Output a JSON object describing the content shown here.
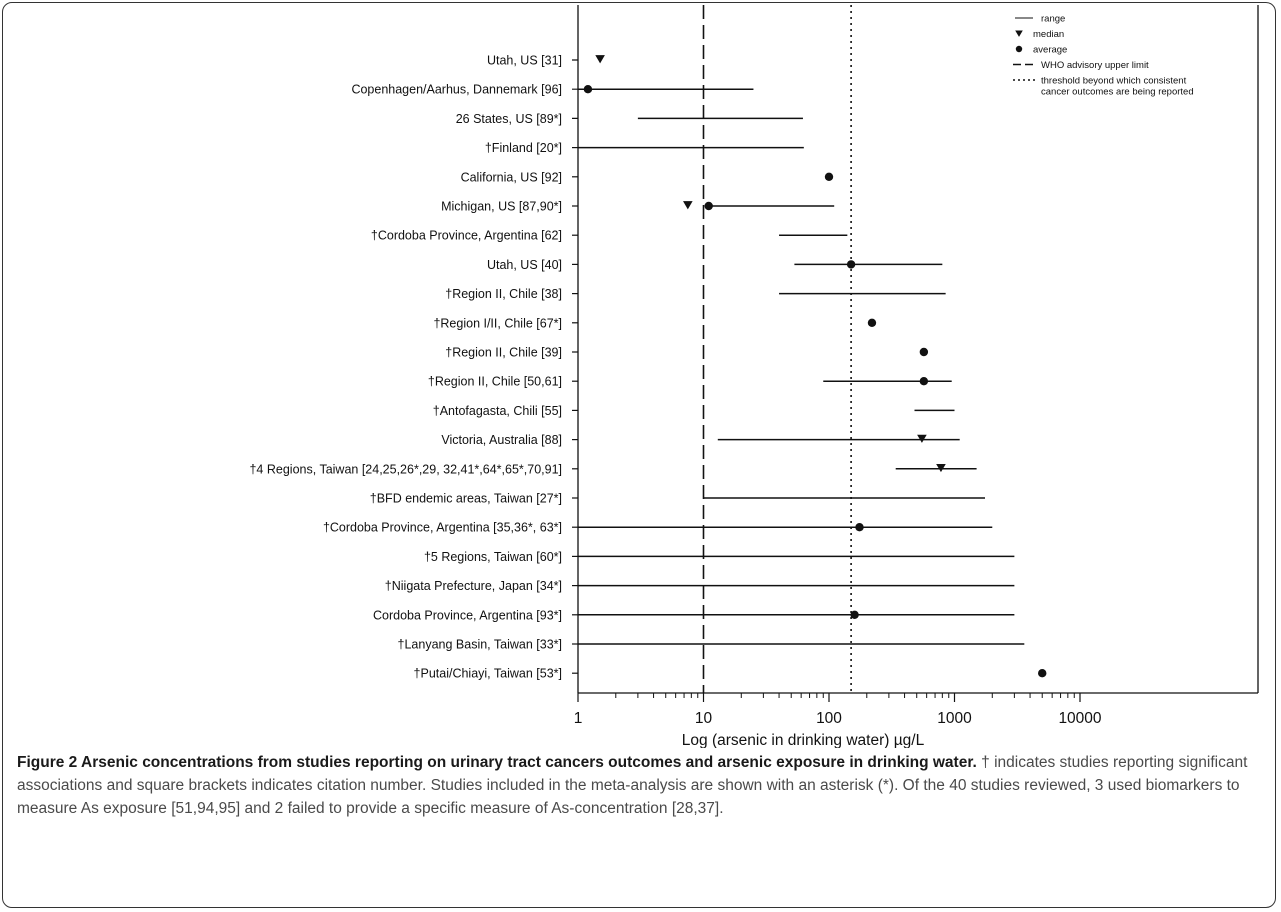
{
  "chart_data": {
    "type": "range-plot",
    "x_scale": "log",
    "xlim": [
      1,
      10000
    ],
    "xlabel": "Log (arsenic in drinking water)  µg/L",
    "x_ticks": [
      "1",
      "10",
      "100",
      "1000",
      "10000"
    ],
    "x_tick_values": [
      1,
      10,
      100,
      1000,
      10000
    ],
    "reference_lines": [
      {
        "name": "WHO advisory upper limit",
        "value": 10,
        "style": "dashed"
      },
      {
        "name": "threshold beyond which consistent cancer outcomes are being reported",
        "value": 150,
        "style": "dotted"
      }
    ],
    "legend": {
      "placement": "top-right",
      "items": [
        {
          "symbol": "line",
          "label": "range"
        },
        {
          "symbol": "triangle",
          "label": "median"
        },
        {
          "symbol": "circle",
          "label": "average"
        },
        {
          "symbol": "dashed",
          "label": "WHO advisory upper limit"
        },
        {
          "symbol": "dotted",
          "label": "threshold beyond which consistent",
          "label2": "cancer outcomes are being reported"
        }
      ]
    },
    "studies": [
      {
        "label": "Utah, US [31]",
        "range": null,
        "median": 1.5,
        "average": null
      },
      {
        "label": "Copenhagen/Aarhus, Dannemark [96]",
        "range": [
          1,
          25
        ],
        "median": null,
        "average": 1.2
      },
      {
        "label": "26 States, US [89*]",
        "range": [
          3,
          62
        ],
        "median": null,
        "average": null
      },
      {
        "label": "†Finland [20*]",
        "range": [
          1,
          63
        ],
        "median": null,
        "average": null
      },
      {
        "label": "California, US [92]",
        "range": null,
        "median": null,
        "average": 100
      },
      {
        "label": "Michigan, US [87,90*]",
        "range": [
          11,
          110
        ],
        "median": 7.5,
        "average": 11
      },
      {
        "label": "†Cordoba Province, Argentina [62]",
        "range": [
          40,
          140
        ],
        "median": null,
        "average": null
      },
      {
        "label": "Utah, US [40]",
        "range": [
          53,
          800
        ],
        "median": null,
        "average": 150
      },
      {
        "label": "†Region II, Chile [38]",
        "range": [
          40,
          850
        ],
        "median": null,
        "average": null
      },
      {
        "label": "†Region I/II, Chile [67*]",
        "range": null,
        "median": null,
        "average": 220
      },
      {
        "label": "†Region II, Chile [39]",
        "range": null,
        "median": null,
        "average": 570
      },
      {
        "label": "†Region II, Chile [50,61]",
        "range": [
          90,
          950
        ],
        "median": null,
        "average": 570
      },
      {
        "label": "†Antofagasta, Chili [55]",
        "range": [
          480,
          1000
        ],
        "median": null,
        "average": null
      },
      {
        "label": "Victoria, Australia [88]",
        "range": [
          13,
          1100
        ],
        "median": 550,
        "average": null
      },
      {
        "label": "†4 Regions, Taiwan [24,25,26*,29, 32,41*,64*,65*,70,91]",
        "range": [
          340,
          1500
        ],
        "median": 780,
        "average": null
      },
      {
        "label": "†BFD endemic areas, Taiwan [27*]",
        "range": [
          10,
          1750
        ],
        "median": null,
        "average": null
      },
      {
        "label": "†Cordoba Province, Argentina [35,36*, 63*]",
        "range": [
          1,
          2000
        ],
        "median": null,
        "average": 175
      },
      {
        "label": "†5 Regions, Taiwan [60*]",
        "range": [
          1,
          3000
        ],
        "median": null,
        "average": null
      },
      {
        "label": "†Niigata Prefecture, Japan [34*]",
        "range": [
          1,
          3000
        ],
        "median": null,
        "average": null
      },
      {
        "label": "Cordoba Province, Argentina [93*]",
        "range": [
          1,
          3000
        ],
        "median": null,
        "average": 160
      },
      {
        "label": "†Lanyang Basin, Taiwan [33*]",
        "range": [
          1,
          3600
        ],
        "median": null,
        "average": null
      },
      {
        "label": "†Putai/Chiayi, Taiwan [53*]",
        "range": null,
        "median": null,
        "average": 5000
      }
    ]
  },
  "caption": {
    "title": "Figure 2 Arsenic concentrations from studies reporting on urinary tract cancers outcomes and arsenic exposure in drinking water.",
    "body": "† indicates studies reporting significant associations and square brackets indicates citation number. Studies included in the meta-analysis are shown with an asterisk (*). Of the 40 studies reviewed, 3 used biomarkers to measure As exposure [51,94,95] and 2 failed to provide a specific measure of As-concentration [28,37]."
  }
}
